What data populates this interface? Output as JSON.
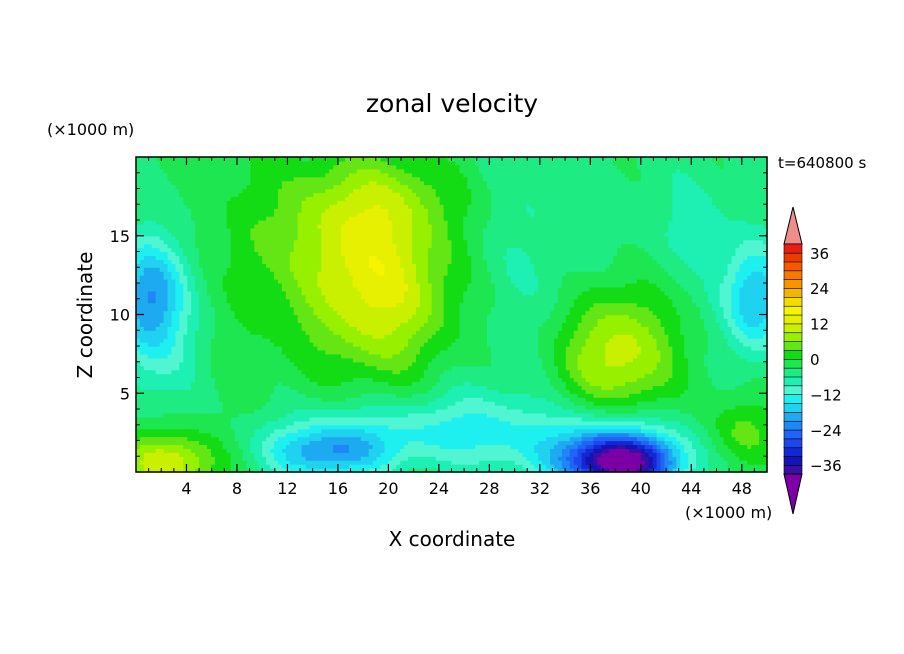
{
  "chart_data": {
    "type": "heatmap",
    "title": "zonal velocity",
    "xlabel": "X coordinate",
    "ylabel": "Z coordinate",
    "x_unit": "(×1000 m)",
    "y_unit": "(×1000 m)",
    "time_label": "t=640800 s",
    "xlim": [
      0,
      50
    ],
    "ylim": [
      0,
      20
    ],
    "x_ticks": [
      "4",
      "8",
      "12",
      "16",
      "20",
      "24",
      "28",
      "32",
      "36",
      "40",
      "44",
      "48"
    ],
    "y_ticks": [
      "5",
      "10",
      "15"
    ],
    "colorbar": {
      "levels": [
        -42,
        -39,
        -36,
        -33,
        -30,
        -27,
        -24,
        -21,
        -18,
        -15,
        -12,
        -9,
        -6,
        -3,
        0,
        3,
        6,
        9,
        12,
        15,
        18,
        21,
        24,
        27,
        30,
        33,
        36,
        39,
        42
      ],
      "colors": [
        "#7b00a6",
        "#3a0fa8",
        "#1414b4",
        "#1428d2",
        "#1e46ec",
        "#1e64f5",
        "#1e87f5",
        "#1eaaf0",
        "#1ed2f0",
        "#1ef0f0",
        "#50f5d2",
        "#1ef0b4",
        "#1eeb82",
        "#1ee650",
        "#14dc14",
        "#64e614",
        "#96f000",
        "#c8f000",
        "#e6f000",
        "#f5f500",
        "#f5dc00",
        "#f5b400",
        "#f59600",
        "#f57800",
        "#f55a00",
        "#eb3c00",
        "#e61e14",
        "#f08c8c"
      ],
      "tick_labels": [
        "36",
        "24",
        "12",
        "0",
        "−12",
        "−24",
        "−36"
      ]
    },
    "features": [
      {
        "x": 38,
        "z": 7.5,
        "amp": 14,
        "sx": 3.2,
        "sz": 3.0
      },
      {
        "x": 38.5,
        "z": 0.6,
        "amp": -34,
        "sx": 3.0,
        "sz": 1.2
      },
      {
        "x": 36.5,
        "z": 1.8,
        "amp": -12,
        "sx": 5.0,
        "sz": 1.8
      },
      {
        "x": 17,
        "z": 14,
        "amp": 11,
        "sx": 4.5,
        "sz": 3.5
      },
      {
        "x": 21,
        "z": 12,
        "amp": 7,
        "sx": 4.0,
        "sz": 3.0
      },
      {
        "x": 20,
        "z": 17.5,
        "amp": 6,
        "sx": 5.0,
        "sz": 2.0
      },
      {
        "x": 19,
        "z": 8.5,
        "amp": 5,
        "sx": 4.0,
        "sz": 2.5
      },
      {
        "x": 15,
        "z": 1.2,
        "amp": -15,
        "sx": 3.5,
        "sz": 1.2
      },
      {
        "x": 20,
        "z": 2.5,
        "amp": -8,
        "sx": 6.0,
        "sz": 1.5
      },
      {
        "x": 2.5,
        "z": 0.6,
        "amp": 14,
        "sx": 3.0,
        "sz": 1.4
      },
      {
        "x": 1,
        "z": 11.5,
        "amp": -16,
        "sx": 2.0,
        "sz": 2.5
      },
      {
        "x": 1.5,
        "z": 8,
        "amp": -6,
        "sx": 2.5,
        "sz": 3.0
      },
      {
        "x": 49,
        "z": 11,
        "amp": -16,
        "sx": 1.8,
        "sz": 2.5
      },
      {
        "x": 48,
        "z": 2.5,
        "amp": 7,
        "sx": 2.0,
        "sz": 1.5
      },
      {
        "x": 27,
        "z": 3,
        "amp": -5,
        "sx": 3.0,
        "sz": 2.0
      },
      {
        "x": 31,
        "z": 14,
        "amp": -4,
        "sx": 5.0,
        "sz": 6.0
      },
      {
        "x": 9,
        "z": 14,
        "amp": 3,
        "sx": 1.5,
        "sz": 5.0
      },
      {
        "x": 44,
        "z": 16,
        "amp": -4,
        "sx": 3.0,
        "sz": 3.0
      }
    ],
    "background": -2.5,
    "grid": false
  }
}
